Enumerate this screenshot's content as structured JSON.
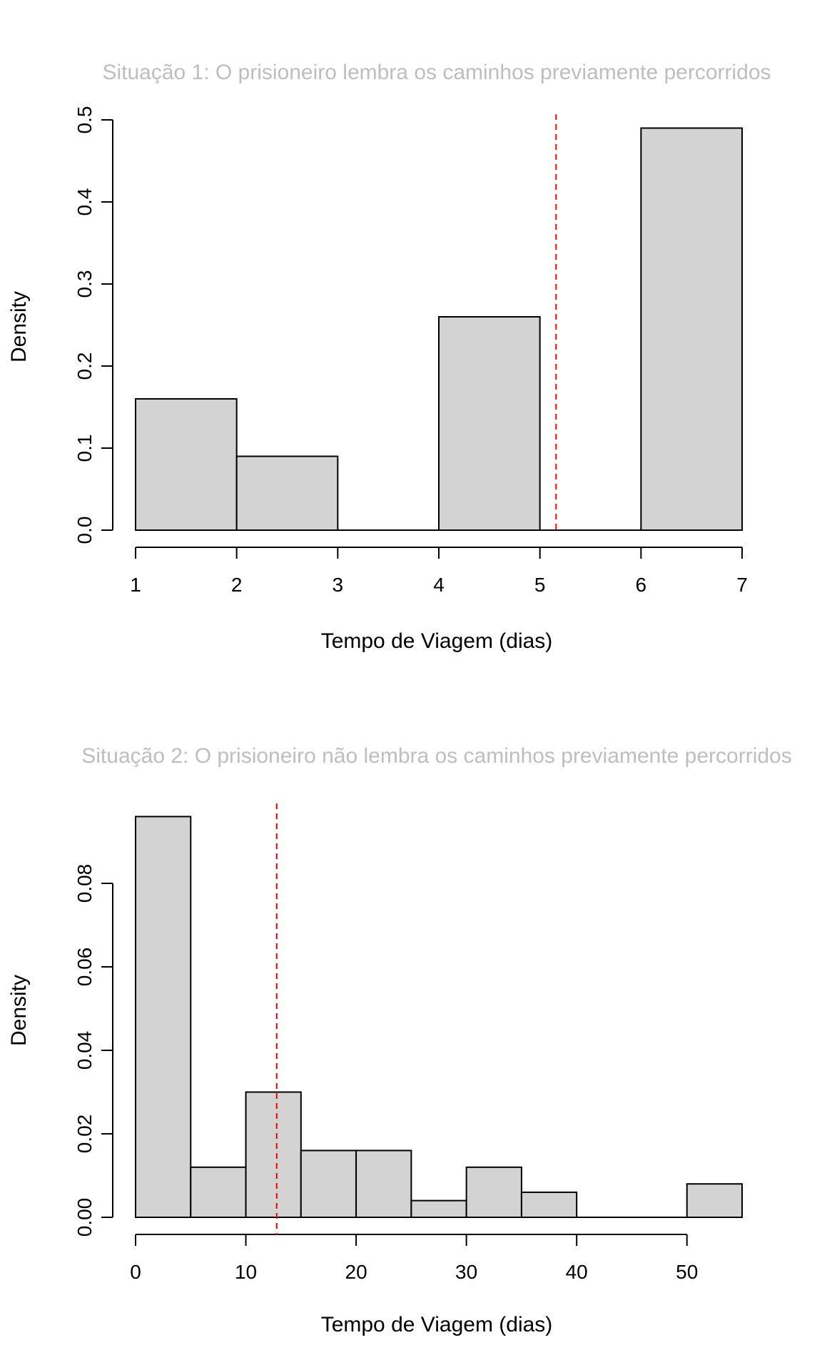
{
  "chart_data": [
    {
      "type": "bar",
      "subtype": "histogram",
      "title": "Situação 1: O prisioneiro lembra os caminhos previamente percorridos",
      "xlabel": "Tempo de Viagem (dias)",
      "ylabel": "Density",
      "xlim": [
        1,
        7
      ],
      "ylim": [
        0,
        0.5
      ],
      "x_ticks": [
        1,
        2,
        3,
        4,
        5,
        6,
        7
      ],
      "x_tick_labels": [
        "1",
        "2",
        "3",
        "4",
        "5",
        "6",
        "7"
      ],
      "y_ticks": [
        0,
        0.1,
        0.2,
        0.3,
        0.4,
        0.5
      ],
      "y_tick_labels": [
        "0.0",
        "0.1",
        "0.2",
        "0.3",
        "0.4",
        "0.5"
      ],
      "bins": [
        [
          1,
          2
        ],
        [
          2,
          3
        ],
        [
          3,
          4
        ],
        [
          4,
          5
        ],
        [
          5,
          6
        ],
        [
          6,
          7
        ]
      ],
      "values": [
        0.16,
        0.09,
        0,
        0.26,
        0,
        0.49
      ],
      "reference_line": 5.16,
      "grid": false
    },
    {
      "type": "bar",
      "subtype": "histogram",
      "title": "Situação 2: O prisioneiro não lembra os caminhos previamente percorridos",
      "xlabel": "Tempo de Viagem (dias)",
      "ylabel": "Density",
      "xlim": [
        0,
        55
      ],
      "ylim": [
        0,
        0.08
      ],
      "x_ticks": [
        0,
        10,
        20,
        30,
        40,
        50
      ],
      "x_tick_labels": [
        "0",
        "10",
        "20",
        "30",
        "40",
        "50"
      ],
      "y_ticks": [
        0,
        0.02,
        0.04,
        0.06,
        0.08
      ],
      "y_tick_labels": [
        "0.00",
        "0.02",
        "0.04",
        "0.06",
        "0.08"
      ],
      "bins": [
        [
          0,
          5
        ],
        [
          5,
          10
        ],
        [
          10,
          15
        ],
        [
          15,
          20
        ],
        [
          20,
          25
        ],
        [
          25,
          30
        ],
        [
          30,
          35
        ],
        [
          35,
          40
        ],
        [
          40,
          45
        ],
        [
          45,
          50
        ],
        [
          50,
          55
        ]
      ],
      "values": [
        0.096,
        0.012,
        0.03,
        0.016,
        0.016,
        0.004,
        0.012,
        0.006,
        0,
        0,
        0.008
      ],
      "reference_line": 12.8,
      "grid": false
    }
  ],
  "colors": {
    "bar_fill": "#d3d3d3",
    "bar_stroke": "#000000",
    "reference_line": "#ff0000",
    "title": "#bebebe",
    "axis": "#000000"
  }
}
